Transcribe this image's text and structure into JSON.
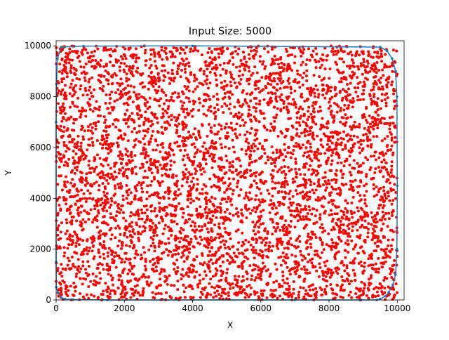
{
  "chart_data": {
    "type": "scatter",
    "title": "Input Size: 5000",
    "xlabel": "X",
    "ylabel": "Y",
    "xlim": [
      0,
      10200
    ],
    "ylim": [
      0,
      10200
    ],
    "xticks": [
      0,
      2000,
      4000,
      6000,
      8000,
      10000
    ],
    "yticks": [
      0,
      2000,
      4000,
      6000,
      8000,
      10000
    ],
    "grid": false,
    "legend": "none",
    "point_count": 5000,
    "point_distribution": "uniform over [0, 10000] x [0, 10000]",
    "colors": {
      "points": "#ff0000",
      "hull": "#1f77b4"
    },
    "series": [
      {
        "kind": "scatter",
        "marker": "circle",
        "n": 5000,
        "x_range": [
          0,
          10000
        ],
        "y_range": [
          0,
          10000
        ]
      },
      {
        "kind": "line",
        "x": [
          150,
          800,
          4000,
          9500,
          9700,
          9850,
          9950,
          9990,
          10000,
          9990,
          9950,
          9870,
          9750,
          9650,
          9500,
          9400,
          8900,
          7000,
          4000,
          1500,
          500,
          250,
          150,
          50,
          5,
          0,
          0,
          10,
          40,
          150
        ],
        "y": [
          9950,
          9990,
          10000,
          9950,
          9800,
          9500,
          9000,
          8000,
          4500,
          2000,
          1000,
          600,
          300,
          150,
          40,
          0,
          0,
          0,
          0,
          0,
          15,
          40,
          100,
          300,
          500,
          1500,
          7000,
          8500,
          9500,
          9950
        ]
      }
    ]
  }
}
